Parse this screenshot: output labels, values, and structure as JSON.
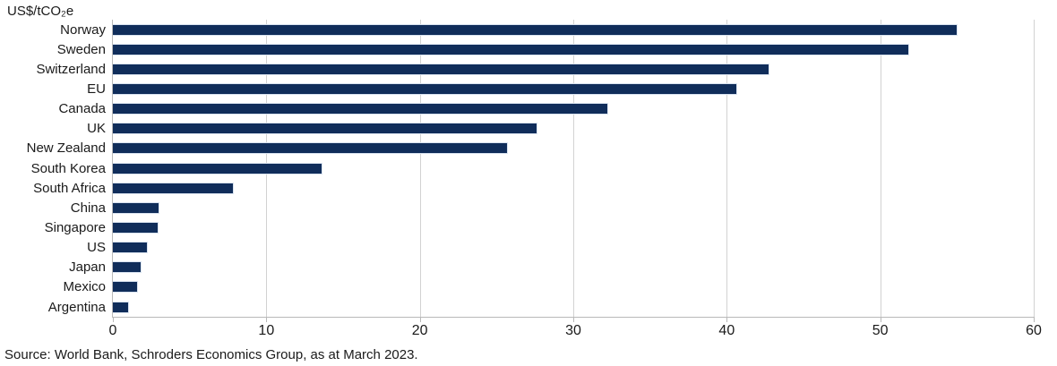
{
  "chart_data": {
    "type": "bar",
    "orientation": "horizontal",
    "title": "",
    "unit_label": "US$/tCO₂e",
    "categories": [
      "Norway",
      "Sweden",
      "Switzerland",
      "EU",
      "Canada",
      "UK",
      "New Zealand",
      "South Korea",
      "South Africa",
      "China",
      "Singapore",
      "US",
      "Japan",
      "Mexico",
      "Argentina"
    ],
    "values": [
      55.0,
      51.8,
      42.7,
      40.6,
      32.2,
      27.6,
      25.7,
      13.6,
      7.8,
      3.0,
      2.9,
      2.2,
      1.8,
      1.6,
      1.0
    ],
    "xlim": [
      0,
      60
    ],
    "x_ticks": [
      0,
      10,
      20,
      30,
      40,
      50,
      60
    ],
    "grid": "vertical",
    "legend": "none",
    "bar_color": "#102D5A",
    "bar_border_color": "#D9E3F0",
    "gridline_color": "#D2D2D2",
    "source": "Source: World Bank, Schroders Economics Group, as at March 2023."
  }
}
